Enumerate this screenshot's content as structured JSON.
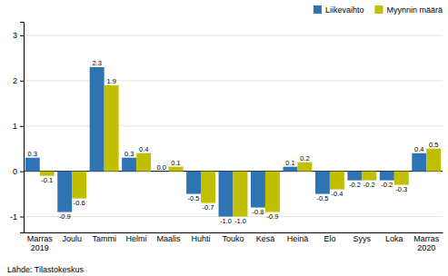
{
  "chart_data": {
    "type": "bar",
    "categories": [
      "Marras\n2019",
      "Joulu",
      "Tammi",
      "Helmi",
      "Maalis",
      "Huhti",
      "Touko",
      "Kesä",
      "Heinä",
      "Elo",
      "Syys",
      "Loka",
      "Marras\n2020"
    ],
    "series": [
      {
        "name": "Liikevaihto",
        "color": "#2E74B5",
        "values": [
          0.3,
          -0.9,
          2.3,
          0.3,
          0.0,
          -0.5,
          -1.0,
          -0.8,
          0.1,
          -0.5,
          -0.2,
          -0.2,
          0.4
        ],
        "value_labels": [
          "0.3",
          "-0.9",
          "2.3",
          "0.3",
          "0.0",
          "-0.5",
          "-1.0",
          "-0.8",
          "0.1",
          "-0.5",
          "-0.2",
          "-0.2",
          "0.4"
        ]
      },
      {
        "name": "Myynnin määrä",
        "color": "#C0C000",
        "values": [
          -0.1,
          -0.6,
          1.9,
          0.4,
          0.1,
          -0.7,
          -1.0,
          -0.9,
          0.2,
          -0.4,
          -0.2,
          -0.3,
          0.5
        ],
        "value_labels": [
          "-0.1",
          "-0.6",
          "1.9",
          "0.4",
          "0.1",
          "-0.7",
          "-1.0",
          "-0.9",
          "0.2",
          "-0.4",
          "-0.2",
          "-0.3",
          "0.5"
        ]
      }
    ],
    "ylim": [
      -1.35,
      3.3
    ],
    "yticks": [
      -1,
      0,
      1,
      2,
      3
    ],
    "grid": true,
    "legend": "upper right",
    "data_labels": true,
    "annotations": [
      "Lähde: Tilastokeskus"
    ]
  }
}
